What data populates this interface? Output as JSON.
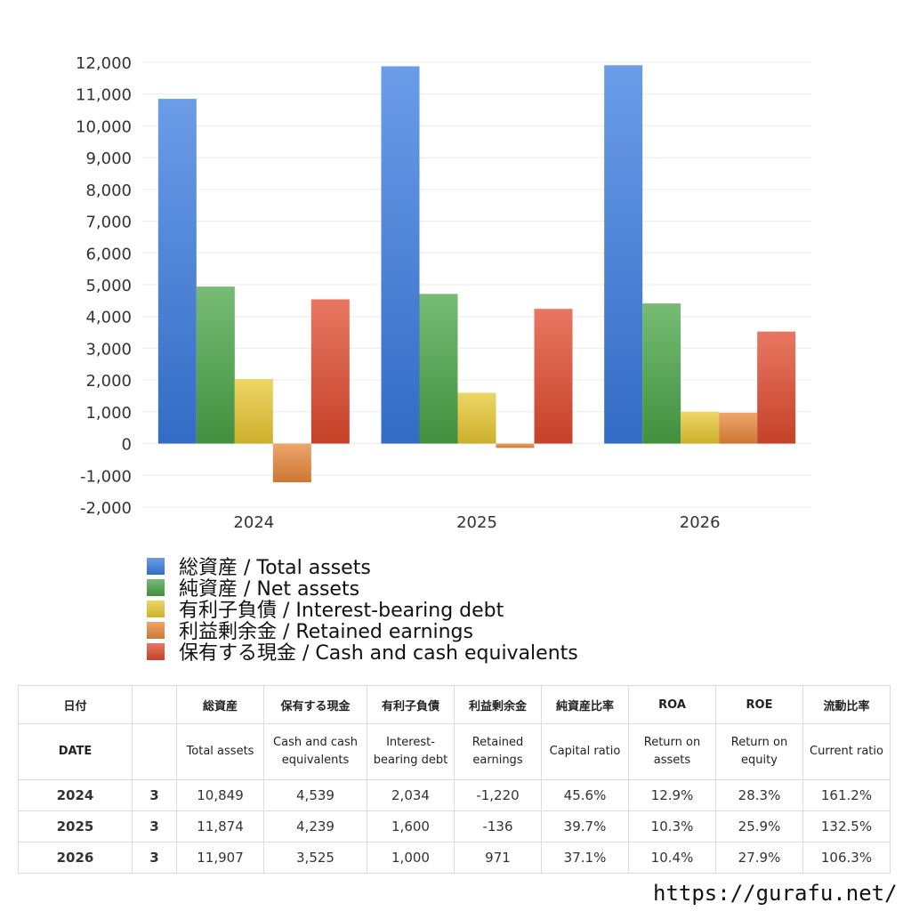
{
  "chart_data": {
    "type": "bar",
    "categories": [
      "2024",
      "2025",
      "2026"
    ],
    "ylim": [
      -2000,
      12000
    ],
    "yticks": [
      "12,000",
      "11,000",
      "10,000",
      "9,000",
      "8,000",
      "7,000",
      "6,000",
      "5,000",
      "4,000",
      "3,000",
      "2,000",
      "1,000",
      "0",
      "-1,000",
      "-2,000"
    ],
    "grid": true,
    "legend_position": "bottom",
    "series": [
      {
        "name": "総資産 / Total assets",
        "color": "#3a7be0",
        "values": [
          10849,
          11874,
          11907
        ]
      },
      {
        "name": "純資産 / Net assets",
        "color": "#4aa447",
        "values": [
          4940,
          4710,
          4410
        ]
      },
      {
        "name": "有利子負債 / Interest-bearing debt",
        "color": "#e8c832",
        "values": [
          2034,
          1600,
          1000
        ]
      },
      {
        "name": "利益剰余金 / Retained earnings",
        "color": "#e8873a",
        "values": [
          -1220,
          -136,
          971
        ]
      },
      {
        "name": "保有する現金 /  Cash and cash equivalents",
        "color": "#e04a2e",
        "values": [
          4539,
          4239,
          3525
        ]
      }
    ]
  },
  "table": {
    "header_jp": [
      "日付",
      "",
      "総資産",
      "保有する現金",
      "有利子負債",
      "利益剰余金",
      "純資産比率",
      "ROA",
      "ROE",
      "流動比率"
    ],
    "header_en": [
      "DATE",
      "",
      "Total assets",
      "Cash and cash equivalents",
      "Interest-bearing debt",
      "Retained earnings",
      "Capital ratio",
      "Return on assets",
      "Return on equity",
      "Current ratio"
    ],
    "rows": [
      {
        "year": "2024",
        "q": "3",
        "total": "10,849",
        "cash": "4,539",
        "debt": "2,034",
        "retained": "-1,220",
        "capital": "45.6%",
        "roa": "12.9%",
        "roe": "28.3%",
        "current": "161.2%"
      },
      {
        "year": "2025",
        "q": "3",
        "total": "11,874",
        "cash": "4,239",
        "debt": "1,600",
        "retained": "-136",
        "capital": "39.7%",
        "roa": "10.3%",
        "roe": "25.9%",
        "current": "132.5%"
      },
      {
        "year": "2026",
        "q": "3",
        "total": "11,907",
        "cash": "3,525",
        "debt": "1,000",
        "retained": "971",
        "capital": "37.1%",
        "roa": "10.4%",
        "roe": "27.9%",
        "current": "106.3%"
      }
    ]
  },
  "footer": {
    "url": "https://gurafu.net/"
  }
}
